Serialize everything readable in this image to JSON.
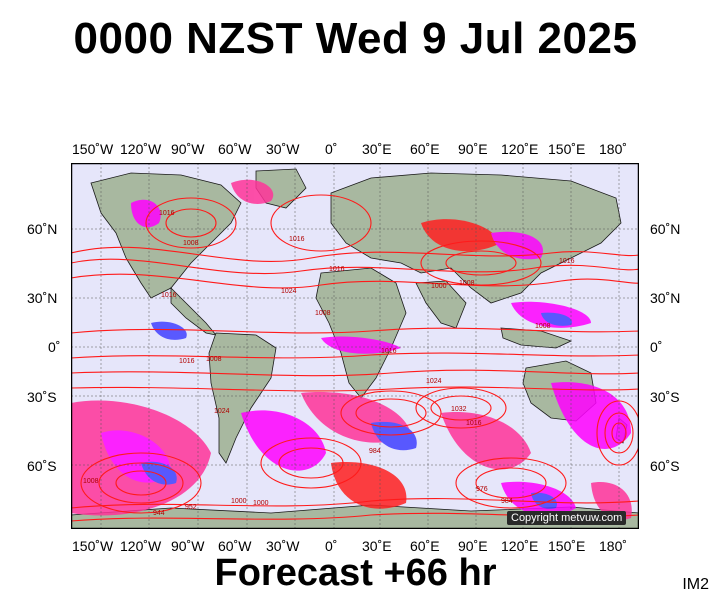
{
  "title": "0000 NZST Wed 9 Jul 2025",
  "forecast_label": "Forecast +66 hr",
  "image_id_label": "IM2",
  "copyright": "Copyright metvuw.com",
  "lon_labels": [
    "150˚W",
    "120˚W",
    "90˚W",
    "60˚W",
    "30˚W",
    "0˚",
    "30˚E",
    "60˚E",
    "90˚E",
    "120˚E",
    "150˚E",
    "180˚"
  ],
  "lat_labels_left": [
    "60˚N",
    "30˚N",
    "0˚",
    "30˚S",
    "60˚S"
  ],
  "lat_labels_right": [
    "60˚N",
    "30˚N",
    "0˚",
    "30˚S",
    "60˚S"
  ],
  "isobar_labels": [
    "1016",
    "1008",
    "1016",
    "1016",
    "1024",
    "1016",
    "1008",
    "1000",
    "1008",
    "1016",
    "1024",
    "1032",
    "1016",
    "1008",
    "1000",
    "984",
    "976",
    "984",
    "1000",
    "1008",
    "944",
    "952",
    "1016",
    "1024",
    "1008",
    "1016"
  ],
  "colors": {
    "isobar": "#ff1a1a",
    "ocean": "#e6e6fa",
    "land": "#a8b8a0",
    "rain_magenta": "#ff00ff",
    "rain_pink": "#ff3399",
    "rain_blue": "#4040ff"
  }
}
